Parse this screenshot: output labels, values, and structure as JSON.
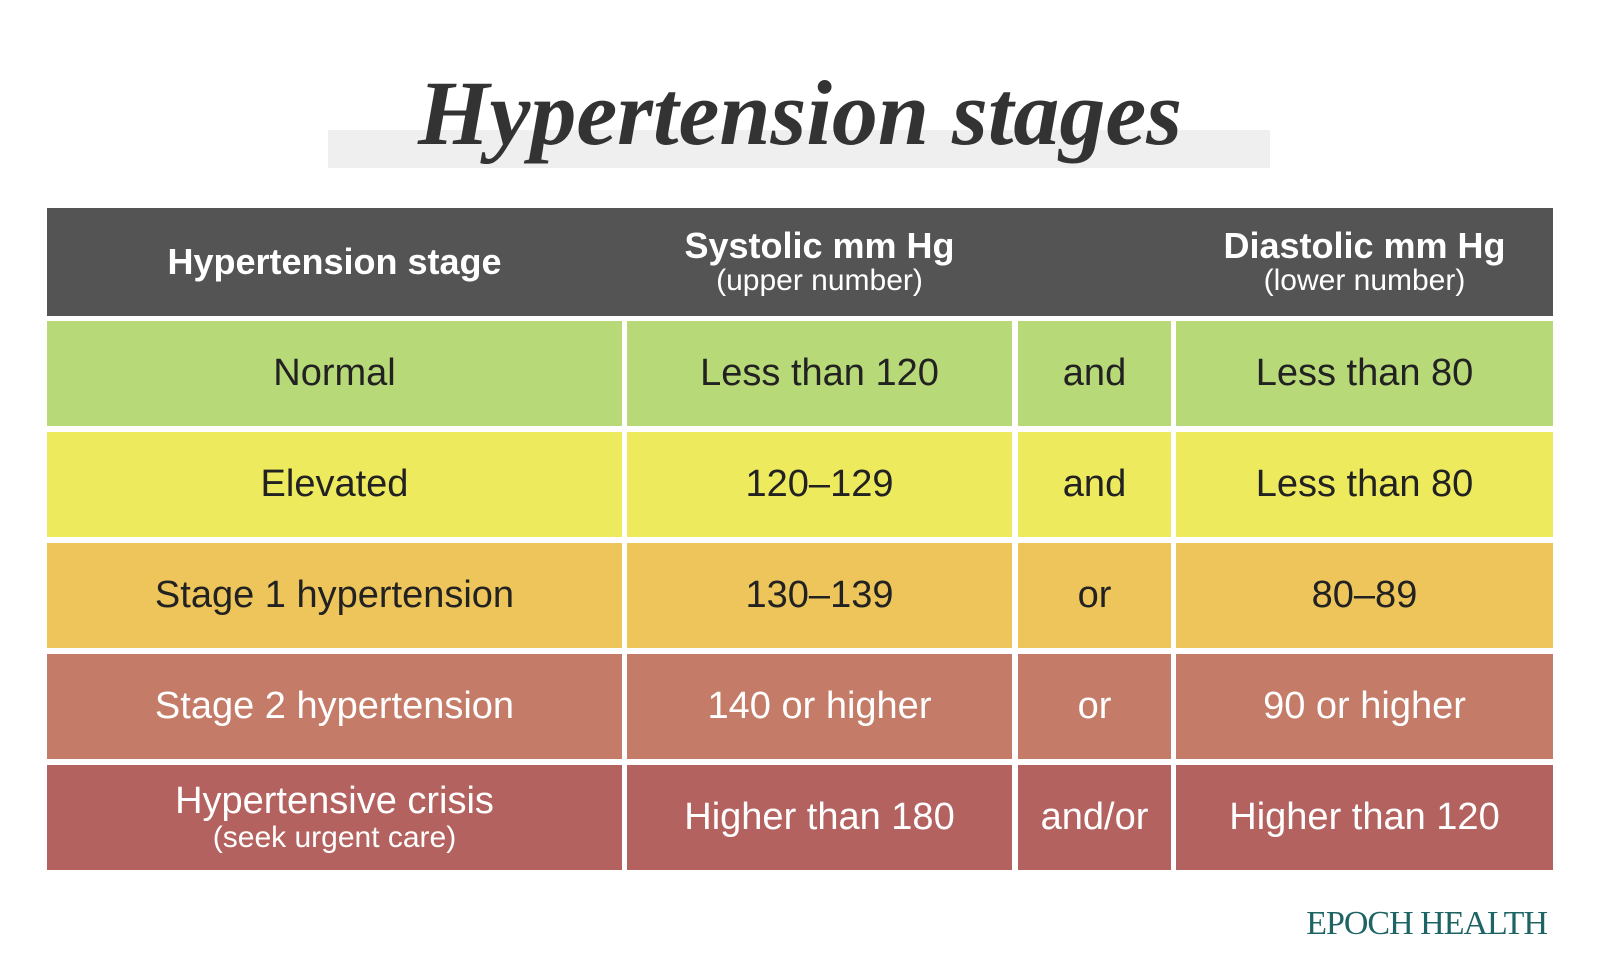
{
  "title": "Hypertension stages",
  "table": {
    "header": {
      "stage": "Hypertension stage",
      "systolic": "Systolic mm Hg",
      "systolic_note": "(upper number)",
      "diastolic": "Diastolic mm Hg",
      "diastolic_note": "(lower number)"
    },
    "rows": [
      {
        "stage": "Normal",
        "systolic": "Less than 120",
        "connector": "and",
        "diastolic": "Less than 80"
      },
      {
        "stage": "Elevated",
        "systolic": "120–129",
        "connector": "and",
        "diastolic": "Less than 80"
      },
      {
        "stage": "Stage 1 hypertension",
        "systolic": "130–139",
        "connector": "or",
        "diastolic": "80–89"
      },
      {
        "stage": "Stage 2 hypertension",
        "systolic": "140 or higher",
        "connector": "or",
        "diastolic": "90 or higher"
      },
      {
        "stage": "Hypertensive crisis",
        "stage_note": "(seek urgent care)",
        "systolic": "Higher than 180",
        "connector": "and/or",
        "diastolic": "Higher than 120"
      }
    ]
  },
  "footer": "EPOCH HEALTH"
}
